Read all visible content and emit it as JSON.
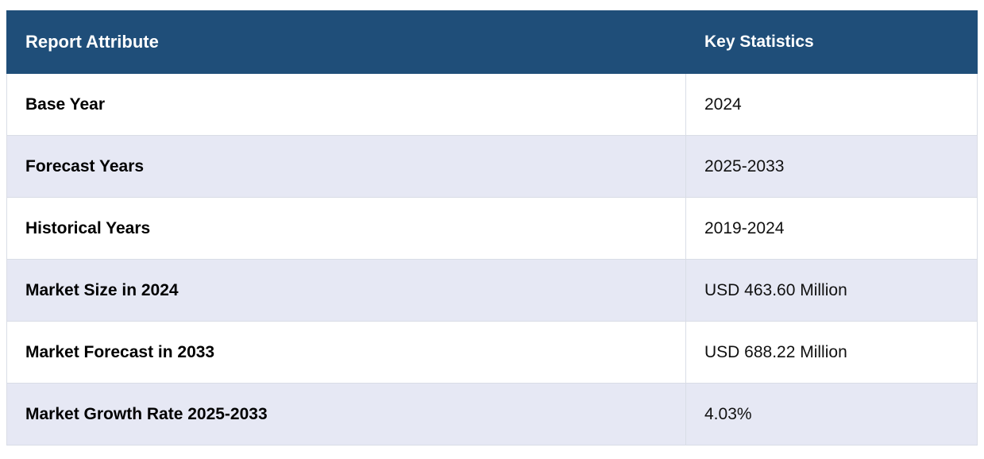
{
  "colors": {
    "header_bg": "#1f4e79",
    "row_odd_bg": "#ffffff",
    "row_even_bg": "#e6e8f4",
    "border": "#d9dde6"
  },
  "table": {
    "headers": [
      "Report Attribute",
      "Key Statistics"
    ],
    "rows": [
      {
        "attribute": "Base Year",
        "value": "2024"
      },
      {
        "attribute": "Forecast Years",
        "value": "2025-2033"
      },
      {
        "attribute": "Historical Years",
        "value": "2019-2024"
      },
      {
        "attribute": "Market Size in 2024",
        "value": "USD 463.60 Million"
      },
      {
        "attribute": "Market Forecast in 2033",
        "value": "USD 688.22 Million"
      },
      {
        "attribute": "Market Growth Rate 2025-2033",
        "value": "4.03%"
      }
    ]
  }
}
